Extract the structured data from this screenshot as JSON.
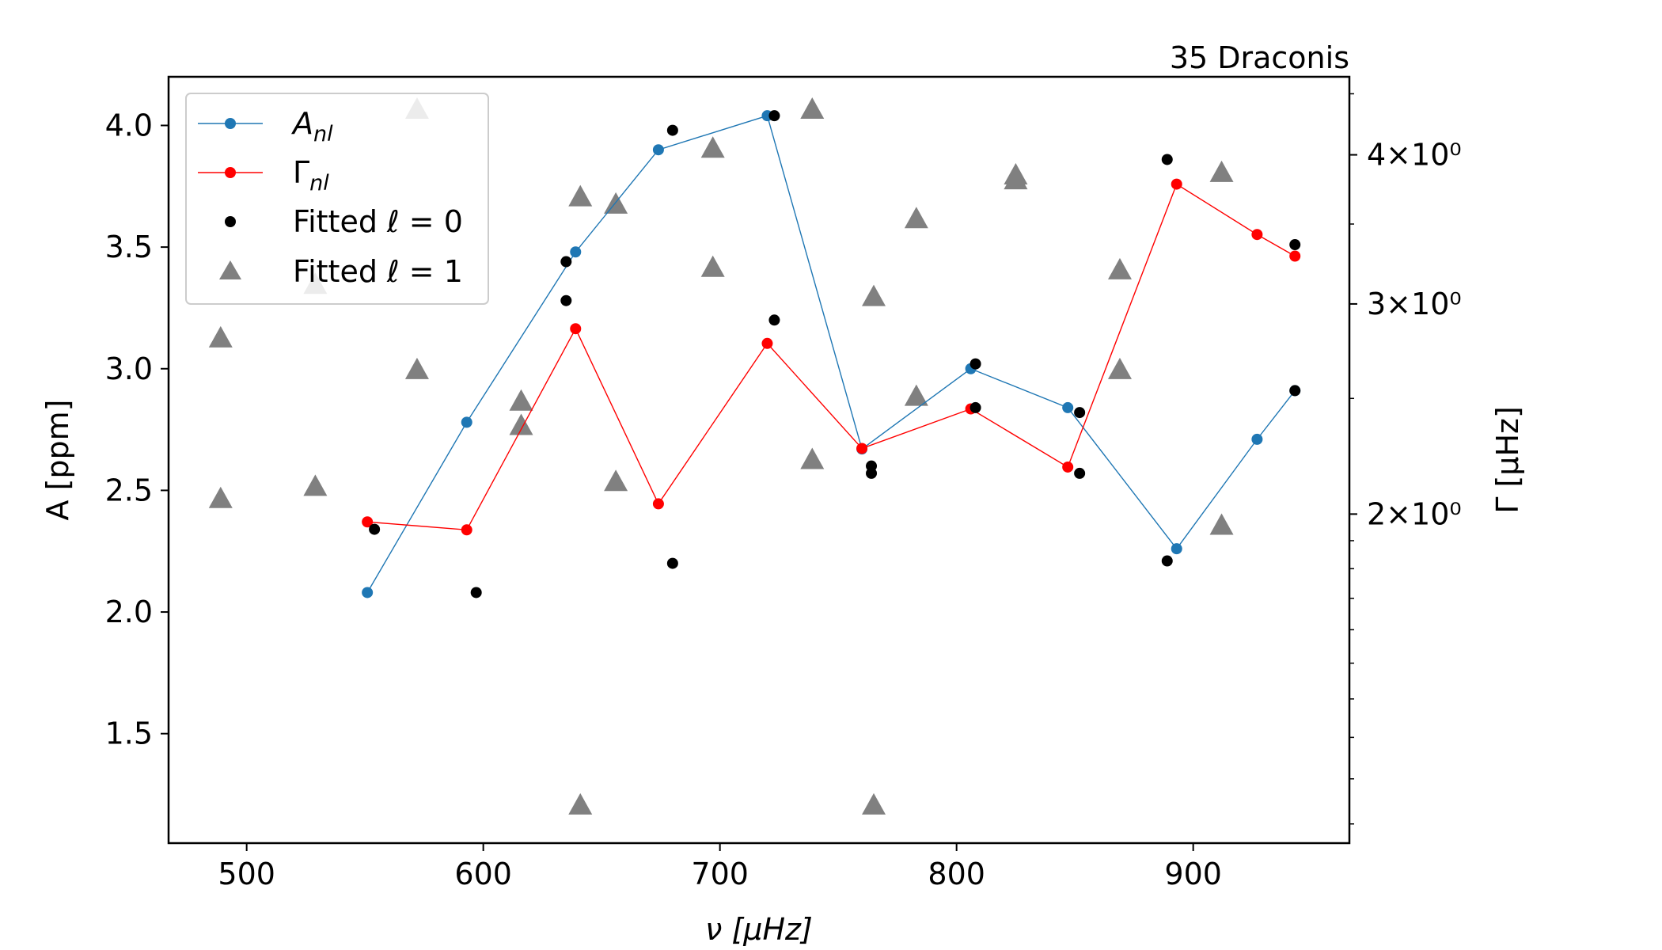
{
  "chart_data": {
    "type": "scatter",
    "title": "35 Draconis",
    "xlabel": "ν [μHz]",
    "ylabel": "A [ppm]",
    "y2label": "Γ [μHz]",
    "xlim": [
      467,
      966
    ],
    "ylim": [
      1.05,
      4.2
    ],
    "y2lim": [
      1.06,
      4.65
    ],
    "y2scale": "log",
    "grid": false,
    "legend_position": "top-left",
    "x_ticks": [
      500,
      600,
      700,
      800,
      900
    ],
    "x_tick_labels": [
      "500",
      "600",
      "700",
      "800",
      "900"
    ],
    "y_ticks": [
      1.5,
      2.0,
      2.5,
      3.0,
      3.5,
      4.0
    ],
    "y_tick_labels": [
      "1.5",
      "2.0",
      "2.5",
      "3.0",
      "3.5",
      "4.0"
    ],
    "y2_ticks": [
      2,
      3,
      4
    ],
    "y2_tick_labels": [
      "2×10⁰",
      "3×10⁰",
      "4×10⁰"
    ],
    "colors": {
      "A": "#1f77b4",
      "Gamma": "#ff0000",
      "fit0": "#000000",
      "fit1": "#808080"
    },
    "series": [
      {
        "name": "A_nl",
        "legend_main": "A",
        "legend_sub": "nl",
        "axis": "left",
        "style": "line+marker",
        "x": [
          551,
          593,
          639,
          674,
          720,
          760,
          806,
          847,
          893,
          927,
          943
        ],
        "y": [
          2.08,
          2.78,
          3.48,
          3.9,
          4.04,
          2.67,
          3.0,
          2.84,
          2.26,
          2.71,
          2.91
        ]
      },
      {
        "name": "Γ_nl",
        "legend_main": "Γ",
        "legend_sub": "nl",
        "axis": "right",
        "style": "line+marker",
        "x": [
          551,
          593,
          639,
          674,
          720,
          760,
          806,
          847,
          893,
          927,
          943
        ],
        "y": [
          1.97,
          1.94,
          2.86,
          2.04,
          2.78,
          2.27,
          2.45,
          2.19,
          3.78,
          3.43,
          3.29
        ]
      },
      {
        "name": "Fitted ℓ = 0",
        "legend_main": "Fitted ℓ = 0",
        "axis": "left",
        "style": "marker",
        "x": [
          554,
          597,
          635,
          635,
          680,
          680,
          723,
          723,
          764,
          764,
          808,
          808,
          852,
          852,
          889,
          889,
          943,
          943
        ],
        "y": [
          2.34,
          2.08,
          3.44,
          3.28,
          3.98,
          2.2,
          4.04,
          3.2,
          2.6,
          2.57,
          3.02,
          2.84,
          2.82,
          2.57,
          3.86,
          2.21,
          3.51,
          2.91
        ]
      },
      {
        "name": "Fitted ℓ = 1",
        "legend_main": "Fitted ℓ = 1",
        "axis": "left",
        "style": "triangle",
        "x": [
          489,
          489,
          529,
          529,
          572,
          572,
          616,
          616,
          641,
          641,
          656,
          656,
          697,
          697,
          739,
          739,
          765,
          765,
          783,
          783,
          825,
          825,
          869,
          869,
          912,
          912
        ],
        "y": [
          3.12,
          2.46,
          3.34,
          2.51,
          4.06,
          2.99,
          2.86,
          2.76,
          3.7,
          1.2,
          3.67,
          2.53,
          3.9,
          3.41,
          4.06,
          2.62,
          3.29,
          1.2,
          3.61,
          2.88,
          3.79,
          3.77,
          3.4,
          2.99,
          3.8,
          2.35
        ]
      }
    ]
  }
}
